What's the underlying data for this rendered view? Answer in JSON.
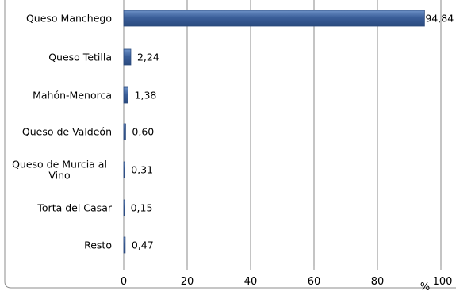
{
  "chart_data": {
    "type": "bar",
    "orientation": "horizontal",
    "categories": [
      "Queso Manchego",
      "Queso Tetilla",
      "Mahón-Menorca",
      "Queso de Valdeón",
      "Queso de Murcia al Vino",
      "Torta del Casar",
      "Resto"
    ],
    "category_label_lines": [
      [
        "Queso Manchego"
      ],
      [
        "Queso Tetilla"
      ],
      [
        "Mahón-Menorca"
      ],
      [
        "Queso de Valdeón"
      ],
      [
        "Queso de Murcia al",
        "Vino"
      ],
      [
        "Torta del Casar"
      ],
      [
        "Resto"
      ]
    ],
    "values": [
      94.84,
      2.24,
      1.38,
      0.6,
      0.31,
      0.15,
      0.47
    ],
    "value_labels": [
      "94,84",
      "2,24",
      "1,38",
      "0,60",
      "0,31",
      "0,15",
      "0,47"
    ],
    "xlim": [
      0,
      100
    ],
    "xticks": [
      0,
      20,
      40,
      60,
      80,
      100
    ],
    "xtick_labels": [
      "0",
      "20",
      "40",
      "60",
      "80",
      "100"
    ],
    "xunit": "%",
    "grid": "vertical",
    "colors": {
      "bar": "#3b5f9a",
      "bar_light": "#6f93c8",
      "grid": "#8a8a8a",
      "frame": "#8c8c8c",
      "axis": "#8c8c8c"
    }
  }
}
